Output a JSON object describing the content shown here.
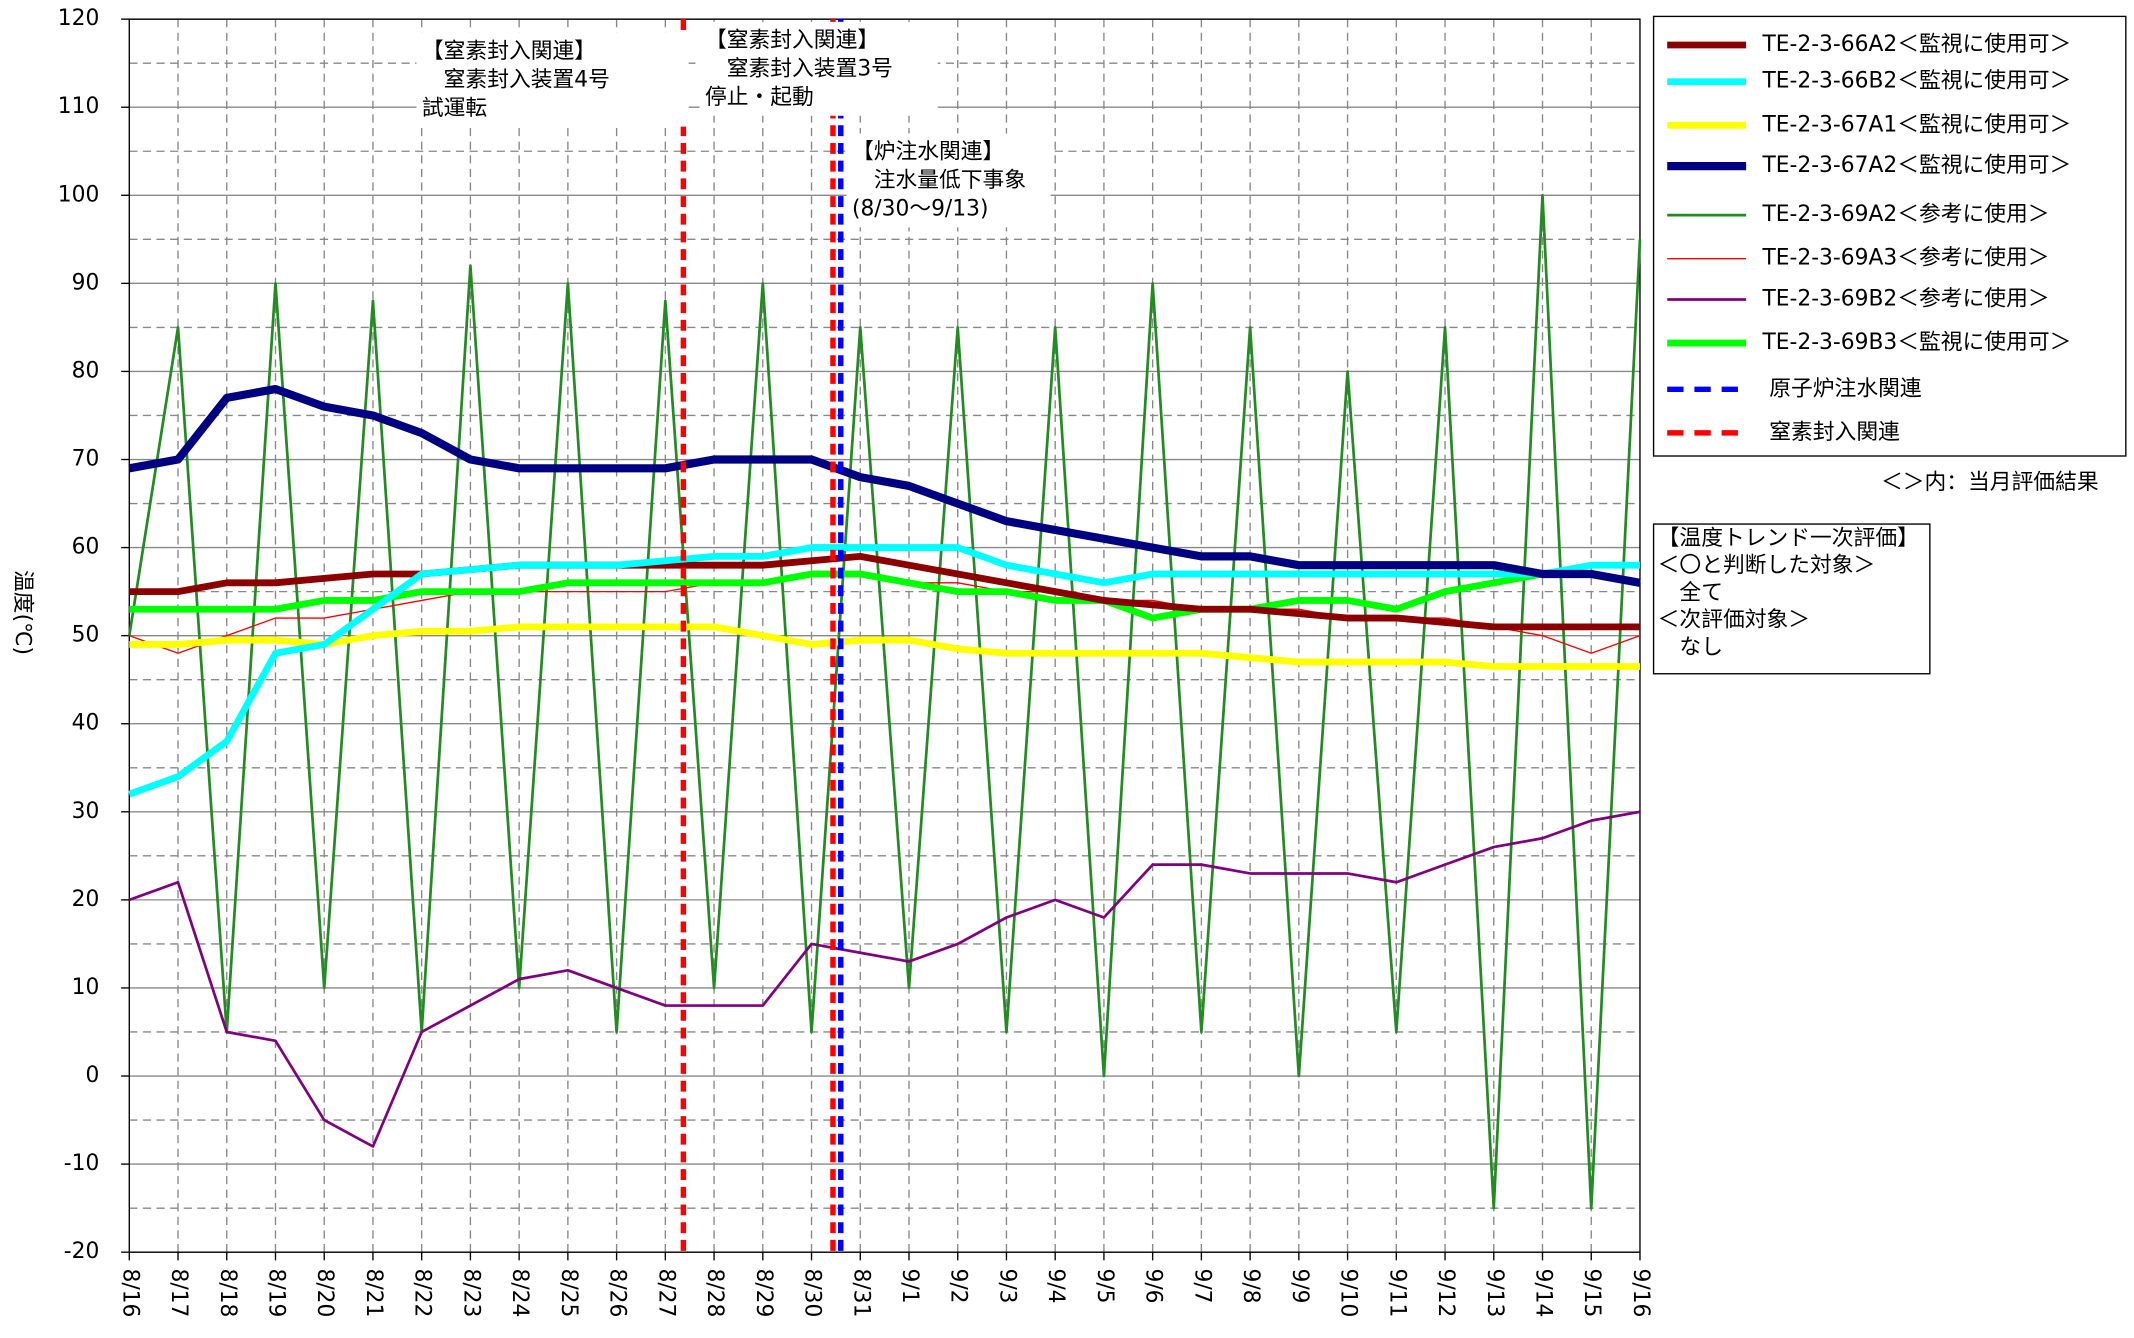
{
  "chart_data": {
    "type": "line",
    "y_label": "温度(℃)",
    "categories": [
      "8/16",
      "8/17",
      "8/18",
      "8/19",
      "8/20",
      "8/21",
      "8/22",
      "8/23",
      "8/24",
      "8/25",
      "8/26",
      "8/27",
      "8/28",
      "8/29",
      "8/30",
      "8/31",
      "9/1",
      "9/2",
      "9/3",
      "9/4",
      "9/5",
      "9/6",
      "9/7",
      "9/8",
      "9/9",
      "9/10",
      "9/11",
      "9/12",
      "9/13",
      "9/14",
      "9/15",
      "9/16"
    ],
    "xlim": [
      0,
      31
    ],
    "ylim": [
      -20,
      120
    ],
    "yticks": [
      -20,
      -10,
      0,
      10,
      20,
      30,
      40,
      50,
      60,
      70,
      80,
      90,
      100,
      110,
      120
    ],
    "grid": true,
    "series": [
      {
        "name": "TE-2-3-66A2＜監視に使用可＞",
        "color": "#8b0000",
        "line_width": 5,
        "values": [
          55,
          55,
          56,
          56,
          56.5,
          57,
          57,
          57.5,
          58,
          58,
          58,
          58,
          58,
          58,
          58.5,
          59,
          58,
          57,
          56,
          55,
          54,
          53.5,
          53,
          53,
          52.5,
          52,
          52,
          51.5,
          51,
          51,
          51,
          51
        ]
      },
      {
        "name": "TE-2-3-66B2＜監視に使用可＞",
        "color": "#00ffff",
        "line_width": 5,
        "values": [
          32,
          34,
          38,
          48,
          49,
          53,
          57,
          57.5,
          58,
          58,
          58,
          58.5,
          59,
          59,
          60,
          60,
          60,
          60,
          58,
          57,
          56,
          57,
          57,
          57,
          57,
          57,
          57,
          57,
          57,
          57,
          58,
          58
        ]
      },
      {
        "name": "TE-2-3-67A1＜監視に使用可＞",
        "color": "#ffff00",
        "line_width": 5,
        "values": [
          49,
          49,
          49.5,
          49.5,
          49,
          50,
          50.5,
          50.5,
          51,
          51,
          51,
          51,
          51,
          50,
          49,
          49.5,
          49.5,
          48.5,
          48,
          48,
          48,
          48,
          48,
          47.5,
          47,
          47,
          47,
          47,
          46.5,
          46.5,
          46.5,
          46.5
        ]
      },
      {
        "name": "TE-2-3-67A2＜監視に使用可＞",
        "color": "#000080",
        "line_width": 6,
        "values": [
          69,
          70,
          77,
          78,
          76,
          75,
          73,
          70,
          69,
          69,
          69,
          69,
          70,
          70,
          70,
          68,
          67,
          65,
          63,
          62,
          61,
          60,
          59,
          59,
          58,
          58,
          58,
          58,
          58,
          57,
          57,
          56
        ]
      },
      {
        "name": "TE-2-3-69A2＜参考に使用＞",
        "color": "#228b22",
        "line_width": 2,
        "values": [
          50,
          85,
          5,
          90,
          10,
          88,
          5,
          92,
          10,
          90,
          5,
          88,
          10,
          90,
          5,
          85,
          10,
          85,
          5,
          85,
          0,
          90,
          5,
          85,
          0,
          80,
          5,
          85,
          -15,
          100,
          -15,
          95
        ]
      },
      {
        "name": "TE-2-3-69A3＜参考に使用＞",
        "color": "#ff0000",
        "line_width": 1,
        "values": [
          50,
          48,
          50,
          52,
          52,
          53,
          54,
          55,
          55,
          55,
          55,
          55,
          56,
          56,
          57,
          57,
          56,
          56,
          55,
          55,
          54,
          54,
          53,
          53,
          53,
          52,
          52,
          52,
          51,
          50,
          48,
          50
        ]
      },
      {
        "name": "TE-2-3-69B2＜参考に使用＞",
        "color": "#800080",
        "line_width": 2,
        "values": [
          20,
          22,
          5,
          4,
          -5,
          -8,
          5,
          8,
          11,
          12,
          10,
          8,
          8,
          8,
          15,
          14,
          13,
          15,
          18,
          20,
          18,
          24,
          24,
          23,
          23,
          23,
          22,
          24,
          26,
          27,
          29,
          30
        ]
      },
      {
        "name": "TE-2-3-69B3＜監視に使用可＞",
        "color": "#00ff00",
        "line_width": 5,
        "values": [
          53,
          53,
          53,
          53,
          54,
          54,
          55,
          55,
          55,
          56,
          56,
          56,
          56,
          56,
          57,
          57,
          56,
          55,
          55,
          54,
          54,
          52,
          53,
          53,
          54,
          54,
          53,
          55,
          56,
          57,
          57,
          56
        ]
      }
    ],
    "draw_order": [
      4,
      5,
      7,
      6,
      0,
      2,
      1,
      3
    ],
    "event_series": [
      {
        "name": "原子炉注水関連",
        "color": "#0000ff",
        "x": [
          14.6
        ]
      },
      {
        "name": "窒素封入関連",
        "color": "#ff0000",
        "x": [
          11.37,
          14.44
        ]
      }
    ],
    "annotations": [
      {
        "lines": [
          "【窒素封入関連】",
          "　窒素封入装置4号",
          "試運転"
        ]
      },
      {
        "lines": [
          "【窒素封入関連】",
          "　窒素封入装置3号",
          "停止・起動"
        ]
      },
      {
        "lines": [
          "【炉注水関連】",
          "　注水量低下事象",
          "(8/30～9/13)"
        ]
      }
    ],
    "legend_note": "＜＞内：当月評価結果",
    "evaluation": [
      "【温度トレンド一次評価】",
      "＜〇と判断した対象＞",
      "　全て",
      "＜次評価対象＞",
      "　なし"
    ]
  }
}
